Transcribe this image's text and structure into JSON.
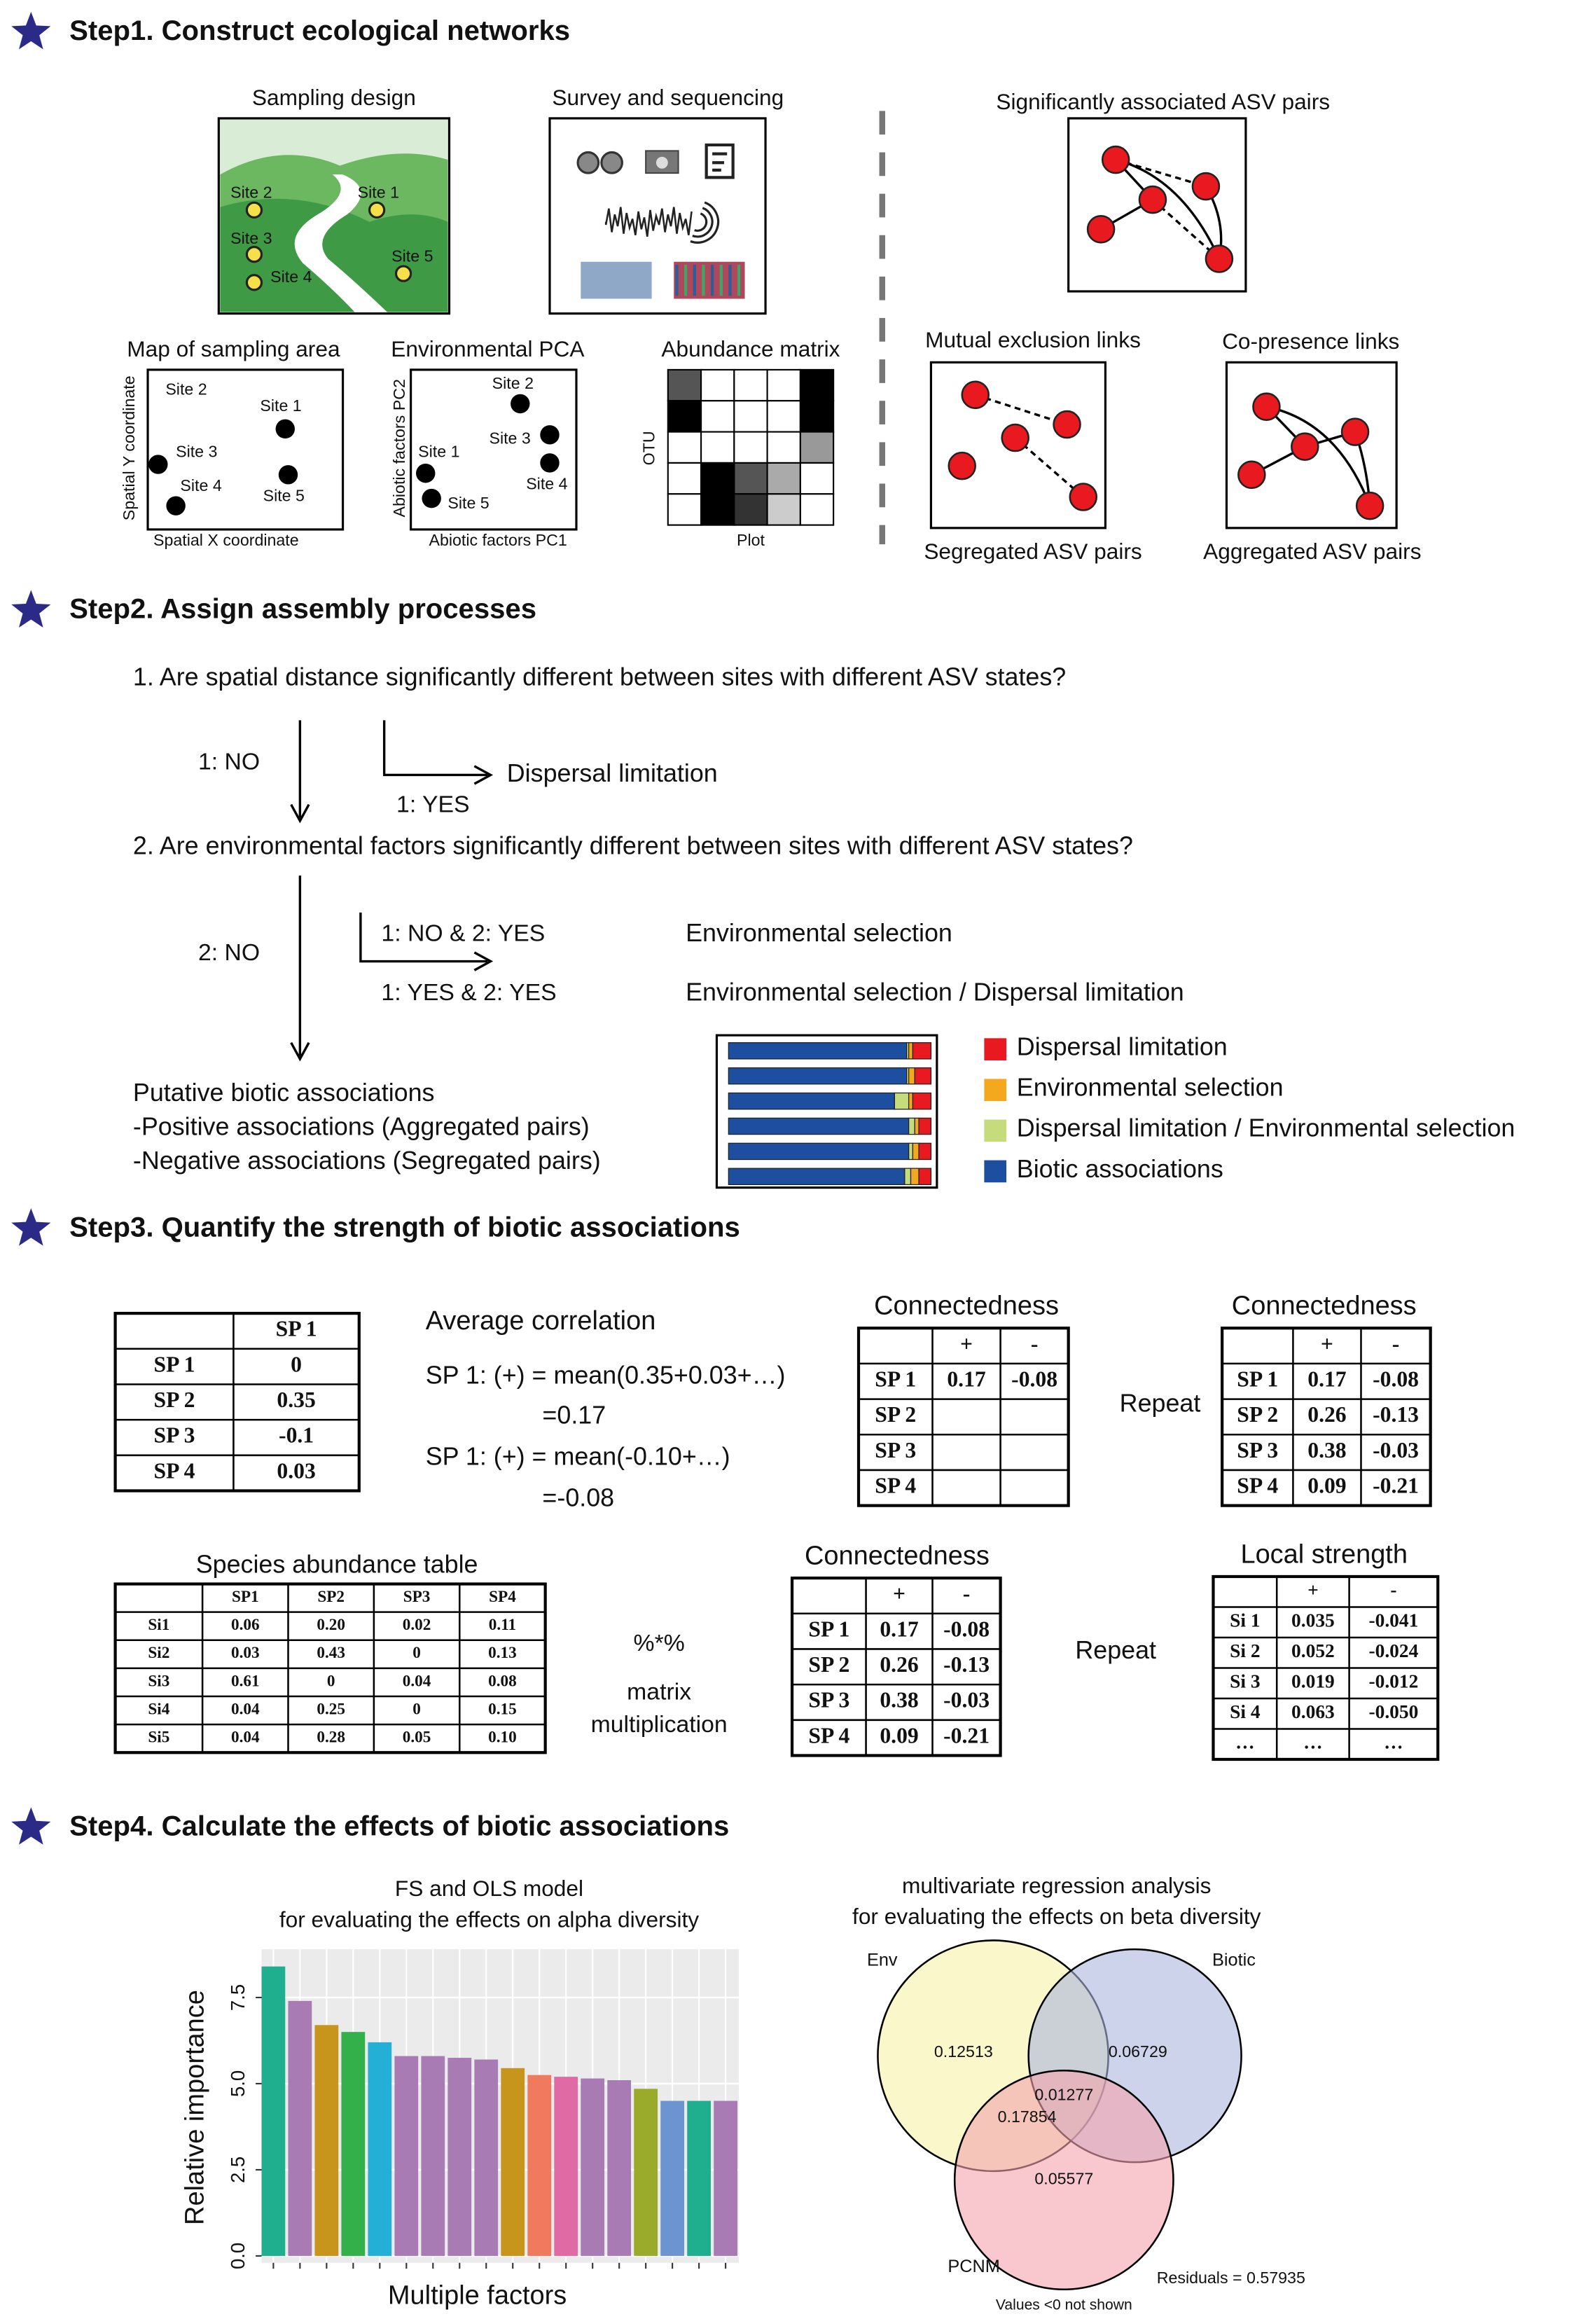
{
  "step1": {
    "title": "Step1. Construct ecological networks",
    "sampling_design": {
      "title": "Sampling design",
      "sites": [
        "Site 2",
        "Site 1",
        "Site 3",
        "Site 5",
        "Site 4"
      ]
    },
    "survey": {
      "title": "Survey and sequencing"
    },
    "map": {
      "title": "Map of sampling area",
      "x_label": "Spatial X coordinate",
      "y_label": "Spatial Y coordinate",
      "sites": [
        "Site 2",
        "Site 1",
        "Site 3",
        "Site 4",
        "Site 5"
      ]
    },
    "pca": {
      "title": "Environmental PCA",
      "x_label": "Abiotic factors PC1",
      "y_label": "Abiotic factors PC2",
      "sites": [
        "Site 2",
        "Site 3",
        "Site 1",
        "Site 4",
        "Site 5"
      ]
    },
    "abundance": {
      "title": "Abundance matrix",
      "y_label": "OTU",
      "x_label": "Plot"
    },
    "networks": {
      "significant": "Significantly associated ASV pairs",
      "mutual": "Mutual exclusion links",
      "copresence": "Co-presence links",
      "segregated": "Segregated ASV pairs",
      "aggregated": "Aggregated ASV pairs"
    }
  },
  "step2": {
    "title": "Step2. Assign assembly processes",
    "q1": "1. Are spatial distance significantly different between sites with different ASV states?",
    "q1_no": "1: NO",
    "q1_yes": "1: YES",
    "q1_result": "Dispersal limitation",
    "q2": "2. Are environmental factors significantly different between sites with different ASV states?",
    "q2_no": "2: NO",
    "branch_a": "1: NO & 2: YES",
    "branch_a_result": "Environmental selection",
    "branch_b": "1: YES & 2: YES",
    "branch_b_result": "Environmental selection / Dispersal limitation",
    "putative": [
      "Putative biotic associations",
      "-Positive associations (Aggregated pairs)",
      "-Negative associations (Segregated pairs)"
    ],
    "stacked": {
      "series": [
        {
          "name": "Dispersal limitation",
          "color": "#e8191f",
          "values": [
            0.09,
            0.08,
            0.09,
            0.06,
            0.06,
            0.06
          ]
        },
        {
          "name": "Environmental selection",
          "color": "#f4a81d",
          "values": [
            0.02,
            0.03,
            0.02,
            0.02,
            0.03,
            0.04
          ]
        },
        {
          "name": "Dispersal limitation / Environmental selection",
          "color": "#c4dc7c",
          "values": [
            0.01,
            0.01,
            0.07,
            0.03,
            0.02,
            0.03
          ]
        },
        {
          "name": "Biotic associations",
          "color": "#1d4fa0",
          "values": [
            0.88,
            0.88,
            0.82,
            0.89,
            0.89,
            0.87
          ]
        }
      ]
    }
  },
  "step3": {
    "title": "Step3. Quantify the strength of biotic associations",
    "correlation_table": {
      "header": [
        "SP 1"
      ],
      "rows": [
        [
          "SP 1",
          "0"
        ],
        [
          "SP 2",
          "0.35"
        ],
        [
          "SP 3",
          "-0.1"
        ],
        [
          "SP 4",
          "0.03"
        ]
      ]
    },
    "average": {
      "title": "Average correlation",
      "lines": [
        "SP 1: (+) = mean(0.35+0.03+…)",
        "=0.17",
        "SP 1: (+) = mean(-0.10+…)",
        "=-0.08"
      ]
    },
    "connectedness_1": {
      "title": "Connectedness",
      "header": [
        "+",
        "-"
      ],
      "rows": [
        [
          "SP 1",
          "0.17",
          "-0.08"
        ],
        [
          "SP 2"
        ],
        [
          "SP 3"
        ],
        [
          "SP 4"
        ]
      ]
    },
    "repeat_1": "Repeat",
    "connectedness_2": {
      "title": "Connectedness",
      "header": [
        "+",
        "-"
      ],
      "rows": [
        [
          "SP 1",
          "0.17",
          "-0.08"
        ],
        [
          "SP 2",
          "0.26",
          "-0.13"
        ],
        [
          "SP 3",
          "0.38",
          "-0.03"
        ],
        [
          "SP 4",
          "0.09",
          "-0.21"
        ]
      ]
    },
    "species_table": {
      "title": "Species abundance table",
      "header": [
        "SP1",
        "SP2",
        "SP3",
        "SP4"
      ],
      "rows": [
        [
          "Si1",
          "0.06",
          "0.20",
          "0.02",
          "0.11"
        ],
        [
          "Si2",
          "0.03",
          "0.43",
          "0",
          "0.13"
        ],
        [
          "Si3",
          "0.61",
          "0",
          "0.04",
          "0.08"
        ],
        [
          "Si4",
          "0.04",
          "0.25",
          "0",
          "0.15"
        ],
        [
          "Si5",
          "0.04",
          "0.28",
          "0.05",
          "0.10"
        ]
      ]
    },
    "operator": "%*%",
    "operator_label": [
      "matrix",
      "multiplication"
    ],
    "connectedness_3": {
      "title": "Connectedness",
      "header": [
        "+",
        "-"
      ],
      "rows": [
        [
          "SP 1",
          "0.17",
          "-0.08"
        ],
        [
          "SP 2",
          "0.26",
          "-0.13"
        ],
        [
          "SP 3",
          "0.38",
          "-0.03"
        ],
        [
          "SP 4",
          "0.09",
          "-0.21"
        ]
      ]
    },
    "repeat_2": "Repeat",
    "local_strength": {
      "title": "Local strength",
      "header": [
        "+",
        "-"
      ],
      "rows": [
        [
          "Si 1",
          "0.035",
          "-0.041"
        ],
        [
          "Si 2",
          "0.052",
          "-0.024"
        ],
        [
          "Si 3",
          "0.019",
          "-0.012"
        ],
        [
          "Si 4",
          "0.063",
          "-0.050"
        ],
        [
          "…",
          "…",
          "…"
        ]
      ]
    }
  },
  "step4": {
    "title": "Step4. Calculate the effects of biotic associations",
    "venn": {
      "title": [
        "multivariate regression analysis",
        "for evaluating the effects on beta diversity"
      ],
      "sets": [
        "Env",
        "Biotic",
        "PCNM"
      ],
      "regions": [
        "0.12513",
        "0.06729",
        "0.01277",
        "0.17854",
        "0.05577"
      ],
      "residuals": "Residuals = 0.57935",
      "note": "Values <0 not shown"
    }
  },
  "chart_data": {
    "type": "bar",
    "title": [
      "FS and OLS model",
      "for evaluating the effects on alpha diversity"
    ],
    "y_label": "Relative importance",
    "x_label": "Multiple factors",
    "ylim": [
      -0.2,
      8.9
    ],
    "yticks": [
      {
        "value": 0,
        "label": "0.0"
      },
      {
        "value": 2.5,
        "label": "2.5"
      },
      {
        "value": 5,
        "label": "5.0"
      },
      {
        "value": 7.5,
        "label": "7.5"
      }
    ],
    "grid": true,
    "categories": [
      null,
      null,
      null,
      null,
      null,
      null,
      null,
      null,
      null,
      null,
      null,
      null,
      null,
      null,
      null,
      null,
      null,
      null
    ],
    "values": [
      8.4,
      7.4,
      6.7,
      6.5,
      6.2,
      5.8,
      5.8,
      5.75,
      5.7,
      5.45,
      5.25,
      5.2,
      5.15,
      5.1,
      4.85,
      4.5,
      4.5,
      4.5
    ],
    "colors": [
      "#1fae8e",
      "#a97bb5",
      "#c8951c",
      "#33b04a",
      "#23afd6",
      "#a97bb5",
      "#a97bb5",
      "#a97bb5",
      "#a97bb5",
      "#c8951c",
      "#ef7a5e",
      "#e06aa4",
      "#a97bb5",
      "#a97bb5",
      "#9aaa2a",
      "#6c94d0",
      "#1fae8e",
      "#a97bb5"
    ]
  }
}
